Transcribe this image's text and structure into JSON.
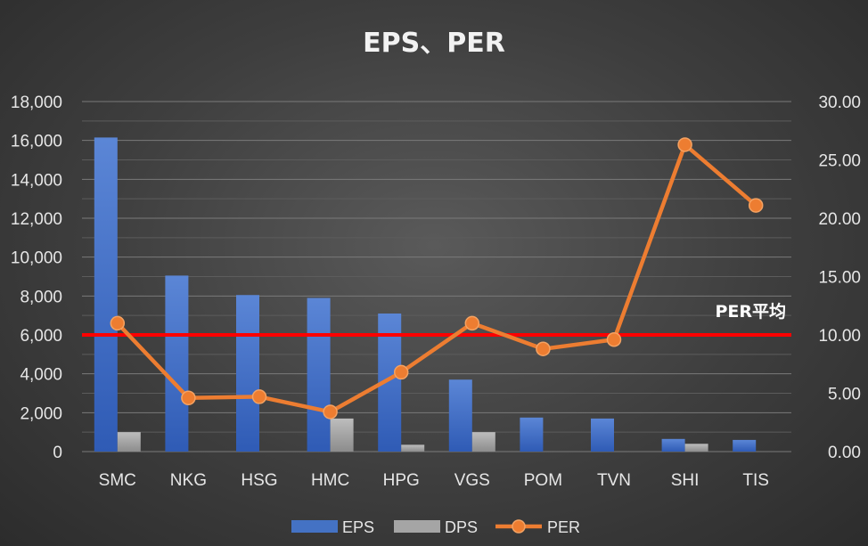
{
  "chart_data": {
    "type": "bar",
    "title": "EPS、PER",
    "categories": [
      "SMC",
      "NKG",
      "HSG",
      "HMC",
      "HPG",
      "VGS",
      "POM",
      "TVN",
      "SHI",
      "TIS"
    ],
    "series": [
      {
        "name": "EPS",
        "type": "bar",
        "axis": "left",
        "color": "#4472C4",
        "values": [
          16150,
          9050,
          8050,
          7900,
          7100,
          3700,
          1750,
          1700,
          650,
          600
        ]
      },
      {
        "name": "DPS",
        "type": "bar",
        "axis": "left",
        "color": "#A5A5A5",
        "values": [
          1000,
          0,
          0,
          1700,
          350,
          1000,
          0,
          0,
          400,
          0
        ]
      },
      {
        "name": "PER",
        "type": "line",
        "axis": "right",
        "color": "#ED7D31",
        "values": [
          11.0,
          4.6,
          4.7,
          3.4,
          6.8,
          11.0,
          8.8,
          9.6,
          26.3,
          21.1
        ]
      }
    ],
    "reference_line": {
      "label": "PER平均",
      "value": 10.0,
      "axis": "right",
      "color": "#FF0000"
    },
    "y_left": {
      "ylim": [
        0,
        18000
      ],
      "ticks": [
        "0",
        "2,000",
        "4,000",
        "6,000",
        "8,000",
        "10,000",
        "12,000",
        "14,000",
        "16,000",
        "18,000"
      ]
    },
    "y_right": {
      "ylim": [
        0,
        30
      ],
      "ticks": [
        "0.00",
        "5.00",
        "10.00",
        "15.00",
        "20.00",
        "25.00",
        "30.00"
      ]
    },
    "grid": true,
    "legend_position": "bottom"
  }
}
